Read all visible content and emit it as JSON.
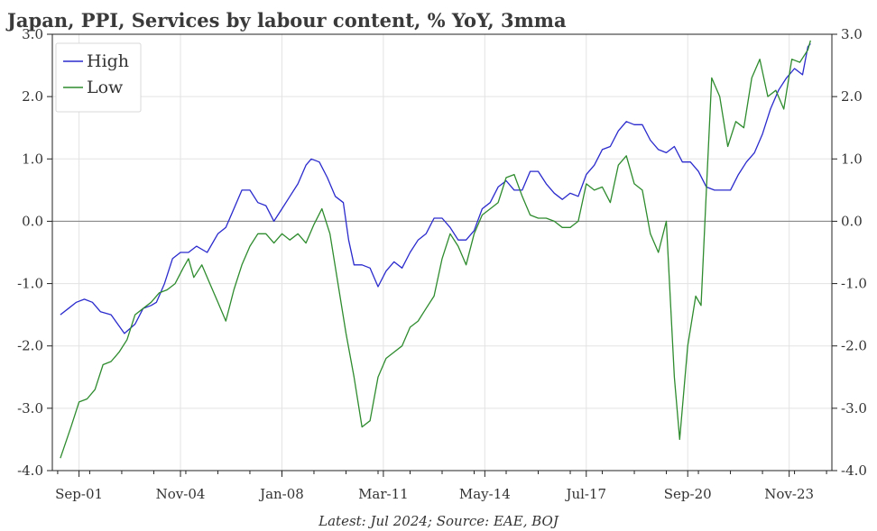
{
  "chart_data": {
    "type": "line",
    "title": "Japan, PPI, Services by labour content, % YoY, 3mma",
    "footnote": "Latest: Jul 2024; Source: EAE, BOJ",
    "x_tick_labels": [
      "Sep-01",
      "Nov-04",
      "Jan-08",
      "Mar-11",
      "May-14",
      "Jul-17",
      "Sep-20",
      "Nov-23"
    ],
    "x_tick_dates": [
      "2001-09",
      "2004-11",
      "2008-01",
      "2011-03",
      "2014-05",
      "2017-07",
      "2020-09",
      "2023-11"
    ],
    "xlim": [
      "2000-11",
      "2025-03"
    ],
    "ylim": [
      -4.0,
      3.0
    ],
    "y_ticks": [
      3.0,
      2.0,
      1.0,
      0.0,
      -1.0,
      -2.0,
      -3.0,
      -4.0
    ],
    "y_tick_labels": [
      "3.0",
      "2.0",
      "1.0",
      "0.0",
      "-1.0",
      "-2.0",
      "-3.0",
      "-4.0"
    ],
    "zero_line": true,
    "grid": true,
    "legend_position": "top-left",
    "series": [
      {
        "name": "High",
        "color": "#2a2acd",
        "points": [
          [
            "2001-02",
            -1.5
          ],
          [
            "2001-05",
            -1.4
          ],
          [
            "2001-08",
            -1.3
          ],
          [
            "2001-11",
            -1.25
          ],
          [
            "2002-02",
            -1.3
          ],
          [
            "2002-05",
            -1.45
          ],
          [
            "2002-09",
            -1.5
          ],
          [
            "2003-02",
            -1.8
          ],
          [
            "2003-06",
            -1.65
          ],
          [
            "2003-09",
            -1.4
          ],
          [
            "2003-12",
            -1.35
          ],
          [
            "2004-02",
            -1.3
          ],
          [
            "2004-05",
            -1.0
          ],
          [
            "2004-08",
            -0.6
          ],
          [
            "2004-11",
            -0.5
          ],
          [
            "2005-02",
            -0.5
          ],
          [
            "2005-05",
            -0.4
          ],
          [
            "2005-09",
            -0.5
          ],
          [
            "2006-01",
            -0.2
          ],
          [
            "2006-04",
            -0.1
          ],
          [
            "2006-07",
            0.2
          ],
          [
            "2006-10",
            0.5
          ],
          [
            "2007-01",
            0.5
          ],
          [
            "2007-04",
            0.3
          ],
          [
            "2007-07",
            0.25
          ],
          [
            "2007-10",
            0.0
          ],
          [
            "2008-01",
            0.2
          ],
          [
            "2008-04",
            0.4
          ],
          [
            "2008-07",
            0.6
          ],
          [
            "2008-10",
            0.9
          ],
          [
            "2008-12",
            1.0
          ],
          [
            "2009-03",
            0.95
          ],
          [
            "2009-06",
            0.7
          ],
          [
            "2009-09",
            0.4
          ],
          [
            "2009-12",
            0.3
          ],
          [
            "2010-02",
            -0.3
          ],
          [
            "2010-04",
            -0.7
          ],
          [
            "2010-07",
            -0.7
          ],
          [
            "2010-10",
            -0.75
          ],
          [
            "2011-01",
            -1.05
          ],
          [
            "2011-04",
            -0.8
          ],
          [
            "2011-07",
            -0.65
          ],
          [
            "2011-10",
            -0.75
          ],
          [
            "2012-01",
            -0.5
          ],
          [
            "2012-04",
            -0.3
          ],
          [
            "2012-07",
            -0.2
          ],
          [
            "2012-10",
            0.05
          ],
          [
            "2013-01",
            0.05
          ],
          [
            "2013-04",
            -0.1
          ],
          [
            "2013-07",
            -0.3
          ],
          [
            "2013-10",
            -0.3
          ],
          [
            "2014-01",
            -0.15
          ],
          [
            "2014-04",
            0.2
          ],
          [
            "2014-07",
            0.3
          ],
          [
            "2014-10",
            0.55
          ],
          [
            "2015-01",
            0.65
          ],
          [
            "2015-04",
            0.5
          ],
          [
            "2015-07",
            0.5
          ],
          [
            "2015-10",
            0.8
          ],
          [
            "2016-01",
            0.8
          ],
          [
            "2016-04",
            0.6
          ],
          [
            "2016-07",
            0.45
          ],
          [
            "2016-10",
            0.35
          ],
          [
            "2017-01",
            0.45
          ],
          [
            "2017-04",
            0.4
          ],
          [
            "2017-07",
            0.75
          ],
          [
            "2017-10",
            0.9
          ],
          [
            "2018-01",
            1.15
          ],
          [
            "2018-04",
            1.2
          ],
          [
            "2018-07",
            1.45
          ],
          [
            "2018-10",
            1.6
          ],
          [
            "2019-01",
            1.55
          ],
          [
            "2019-04",
            1.55
          ],
          [
            "2019-07",
            1.3
          ],
          [
            "2019-10",
            1.15
          ],
          [
            "2020-01",
            1.1
          ],
          [
            "2020-04",
            1.2
          ],
          [
            "2020-07",
            0.95
          ],
          [
            "2020-10",
            0.95
          ],
          [
            "2021-01",
            0.8
          ],
          [
            "2021-04",
            0.55
          ],
          [
            "2021-07",
            0.5
          ],
          [
            "2021-10",
            0.5
          ],
          [
            "2022-01",
            0.5
          ],
          [
            "2022-04",
            0.75
          ],
          [
            "2022-07",
            0.95
          ],
          [
            "2022-10",
            1.1
          ],
          [
            "2023-01",
            1.4
          ],
          [
            "2023-04",
            1.8
          ],
          [
            "2023-07",
            2.1
          ],
          [
            "2023-10",
            2.3
          ],
          [
            "2024-01",
            2.45
          ],
          [
            "2024-04",
            2.35
          ],
          [
            "2024-06",
            2.8
          ],
          [
            "2024-07",
            2.85
          ]
        ]
      },
      {
        "name": "Low",
        "color": "#2e8b2e",
        "points": [
          [
            "2001-02",
            -3.8
          ],
          [
            "2001-06",
            -3.3
          ],
          [
            "2001-09",
            -2.9
          ],
          [
            "2001-12",
            -2.85
          ],
          [
            "2002-03",
            -2.7
          ],
          [
            "2002-06",
            -2.3
          ],
          [
            "2002-09",
            -2.25
          ],
          [
            "2002-12",
            -2.1
          ],
          [
            "2003-03",
            -1.9
          ],
          [
            "2003-06",
            -1.5
          ],
          [
            "2003-09",
            -1.4
          ],
          [
            "2003-12",
            -1.3
          ],
          [
            "2004-03",
            -1.15
          ],
          [
            "2004-06",
            -1.1
          ],
          [
            "2004-09",
            -1.0
          ],
          [
            "2004-12",
            -0.75
          ],
          [
            "2005-02",
            -0.6
          ],
          [
            "2005-04",
            -0.9
          ],
          [
            "2005-07",
            -0.7
          ],
          [
            "2005-10",
            -1.0
          ],
          [
            "2006-01",
            -1.3
          ],
          [
            "2006-04",
            -1.6
          ],
          [
            "2006-07",
            -1.1
          ],
          [
            "2006-10",
            -0.7
          ],
          [
            "2007-01",
            -0.4
          ],
          [
            "2007-04",
            -0.2
          ],
          [
            "2007-07",
            -0.2
          ],
          [
            "2007-10",
            -0.35
          ],
          [
            "2008-01",
            -0.2
          ],
          [
            "2008-04",
            -0.3
          ],
          [
            "2008-07",
            -0.2
          ],
          [
            "2008-10",
            -0.35
          ],
          [
            "2009-01",
            -0.05
          ],
          [
            "2009-04",
            0.2
          ],
          [
            "2009-07",
            -0.2
          ],
          [
            "2009-10",
            -1.0
          ],
          [
            "2010-01",
            -1.8
          ],
          [
            "2010-04",
            -2.5
          ],
          [
            "2010-07",
            -3.3
          ],
          [
            "2010-10",
            -3.2
          ],
          [
            "2011-01",
            -2.5
          ],
          [
            "2011-04",
            -2.2
          ],
          [
            "2011-07",
            -2.1
          ],
          [
            "2011-10",
            -2.0
          ],
          [
            "2012-01",
            -1.7
          ],
          [
            "2012-04",
            -1.6
          ],
          [
            "2012-07",
            -1.4
          ],
          [
            "2012-10",
            -1.2
          ],
          [
            "2013-01",
            -0.6
          ],
          [
            "2013-04",
            -0.2
          ],
          [
            "2013-07",
            -0.4
          ],
          [
            "2013-10",
            -0.7
          ],
          [
            "2014-01",
            -0.2
          ],
          [
            "2014-04",
            0.1
          ],
          [
            "2014-07",
            0.2
          ],
          [
            "2014-10",
            0.3
          ],
          [
            "2015-01",
            0.7
          ],
          [
            "2015-04",
            0.75
          ],
          [
            "2015-07",
            0.4
          ],
          [
            "2015-10",
            0.1
          ],
          [
            "2016-01",
            0.05
          ],
          [
            "2016-04",
            0.05
          ],
          [
            "2016-07",
            0.0
          ],
          [
            "2016-10",
            -0.1
          ],
          [
            "2017-01",
            -0.1
          ],
          [
            "2017-04",
            0.0
          ],
          [
            "2017-07",
            0.6
          ],
          [
            "2017-10",
            0.5
          ],
          [
            "2018-01",
            0.55
          ],
          [
            "2018-04",
            0.3
          ],
          [
            "2018-07",
            0.9
          ],
          [
            "2018-10",
            1.05
          ],
          [
            "2019-01",
            0.6
          ],
          [
            "2019-04",
            0.5
          ],
          [
            "2019-07",
            -0.2
          ],
          [
            "2019-10",
            -0.5
          ],
          [
            "2020-01",
            0.0
          ],
          [
            "2020-04",
            -2.5
          ],
          [
            "2020-06",
            -3.5
          ],
          [
            "2020-09",
            -2.0
          ],
          [
            "2020-12",
            -1.2
          ],
          [
            "2021-02",
            -1.35
          ],
          [
            "2021-04",
            0.5
          ],
          [
            "2021-06",
            2.3
          ],
          [
            "2021-09",
            2.0
          ],
          [
            "2021-12",
            1.2
          ],
          [
            "2022-03",
            1.6
          ],
          [
            "2022-06",
            1.5
          ],
          [
            "2022-09",
            2.3
          ],
          [
            "2022-12",
            2.6
          ],
          [
            "2023-03",
            2.0
          ],
          [
            "2023-06",
            2.1
          ],
          [
            "2023-09",
            1.8
          ],
          [
            "2023-12",
            2.6
          ],
          [
            "2024-03",
            2.55
          ],
          [
            "2024-06",
            2.75
          ],
          [
            "2024-07",
            2.9
          ]
        ]
      }
    ]
  }
}
